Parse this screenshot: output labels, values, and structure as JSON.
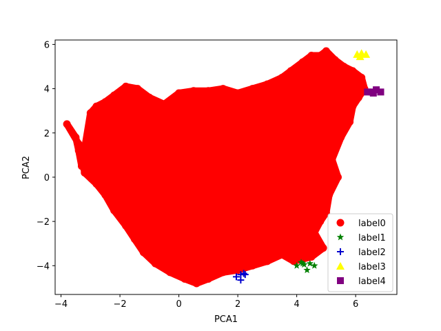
{
  "chart_data": {
    "type": "scatter",
    "title": "",
    "xlabel": "PCA1",
    "ylabel": "PCA2",
    "xlim": [
      -4.2,
      7.4
    ],
    "ylim": [
      -5.3,
      6.2
    ],
    "xticks": [
      "−4",
      "−2",
      "0",
      "2",
      "4",
      "6"
    ],
    "xtick_values": [
      -4,
      -2,
      0,
      2,
      4,
      6
    ],
    "yticks": [
      "−4",
      "−2",
      "0",
      "2",
      "4",
      "6"
    ],
    "ytick_values": [
      -4,
      -2,
      0,
      2,
      4,
      6
    ],
    "grid": false,
    "legend_position": "lower-right",
    "series": [
      {
        "name": "label0",
        "color": "#ff0000",
        "marker": "circle",
        "region_description": "dense heart-shaped cloud of several thousand points",
        "points": [
          [
            -3.8,
            2.4
          ],
          [
            -3.5,
            1.8
          ],
          [
            -3.4,
            1.2
          ],
          [
            -3.3,
            0.5
          ],
          [
            -3.0,
            2.9
          ],
          [
            -2.8,
            3.2
          ],
          [
            -2.5,
            3.4
          ],
          [
            -2.2,
            3.7
          ],
          [
            -1.8,
            4.1
          ],
          [
            -1.4,
            4.0
          ],
          [
            -1.0,
            3.6
          ],
          [
            -0.5,
            3.3
          ],
          [
            0.0,
            3.8
          ],
          [
            0.5,
            3.9
          ],
          [
            1.0,
            3.9
          ],
          [
            1.5,
            4.0
          ],
          [
            2.0,
            3.8
          ],
          [
            2.5,
            4.0
          ],
          [
            3.0,
            4.2
          ],
          [
            3.5,
            4.5
          ],
          [
            3.8,
            4.8
          ],
          [
            4.2,
            5.2
          ],
          [
            4.5,
            5.5
          ],
          [
            4.8,
            5.5
          ],
          [
            5.0,
            5.7
          ],
          [
            5.3,
            5.3
          ],
          [
            5.6,
            5.0
          ],
          [
            5.9,
            4.8
          ],
          [
            6.2,
            4.5
          ],
          [
            6.3,
            4.0
          ],
          [
            6.1,
            3.6
          ],
          [
            5.9,
            3.2
          ],
          [
            5.8,
            2.5
          ],
          [
            5.5,
            1.8
          ],
          [
            5.2,
            0.8
          ],
          [
            5.4,
            0.0
          ],
          [
            5.1,
            -0.8
          ],
          [
            5.0,
            -1.6
          ],
          [
            4.8,
            -2.0
          ],
          [
            4.6,
            -2.5
          ],
          [
            4.9,
            -3.2
          ],
          [
            4.5,
            -3.6
          ],
          [
            3.9,
            -3.8
          ],
          [
            3.5,
            -3.5
          ],
          [
            3.0,
            -3.8
          ],
          [
            2.5,
            -4.0
          ],
          [
            2.0,
            -4.2
          ],
          [
            1.5,
            -4.3
          ],
          [
            1.0,
            -4.6
          ],
          [
            0.6,
            -4.8
          ],
          [
            0.2,
            -4.6
          ],
          [
            -0.3,
            -4.3
          ],
          [
            -0.8,
            -3.9
          ],
          [
            -1.2,
            -3.4
          ],
          [
            -1.5,
            -2.8
          ],
          [
            -1.8,
            -2.2
          ],
          [
            -2.2,
            -1.5
          ],
          [
            -2.5,
            -0.8
          ],
          [
            -2.8,
            -0.3
          ],
          [
            -3.2,
            0.2
          ],
          [
            -3.4,
            1.5
          ]
        ]
      },
      {
        "name": "label1",
        "color": "#008000",
        "marker": "star",
        "points": [
          [
            4.0,
            -4.0
          ],
          [
            4.15,
            -3.85
          ],
          [
            4.25,
            -3.95
          ],
          [
            4.35,
            -4.2
          ],
          [
            4.45,
            -3.9
          ],
          [
            4.6,
            -4.0
          ],
          [
            4.2,
            -3.9
          ]
        ]
      },
      {
        "name": "label2",
        "color": "#0000cd",
        "marker": "plus",
        "points": [
          [
            1.95,
            -4.5
          ],
          [
            2.1,
            -4.4
          ],
          [
            2.2,
            -4.35
          ],
          [
            2.1,
            -4.65
          ],
          [
            2.25,
            -4.4
          ]
        ]
      },
      {
        "name": "label3",
        "color": "#ffff00",
        "marker": "triangle",
        "points": [
          [
            6.05,
            5.55
          ],
          [
            6.2,
            5.6
          ],
          [
            6.35,
            5.55
          ],
          [
            6.15,
            5.45
          ]
        ]
      },
      {
        "name": "label4",
        "color": "#800080",
        "marker": "square",
        "points": [
          [
            6.4,
            3.85
          ],
          [
            6.55,
            3.85
          ],
          [
            6.7,
            3.95
          ],
          [
            6.85,
            3.85
          ],
          [
            6.6,
            3.8
          ]
        ]
      }
    ]
  }
}
